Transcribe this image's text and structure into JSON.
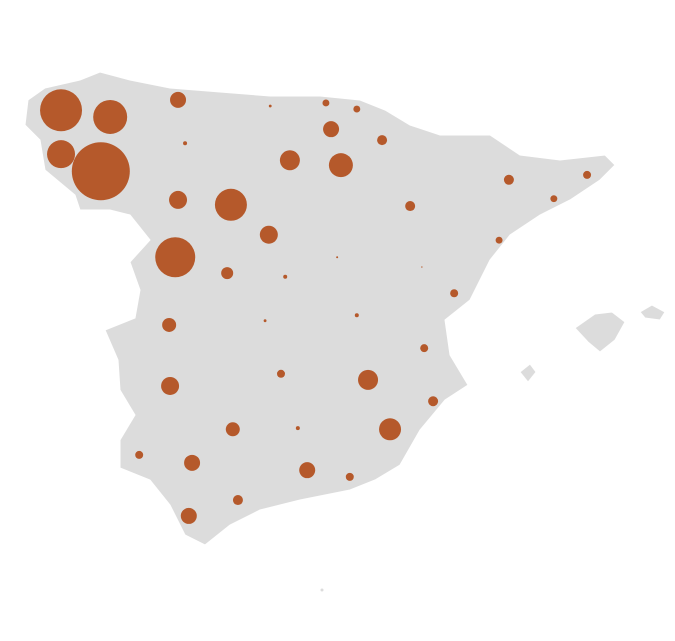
{
  "chart_data": {
    "type": "bubble_map",
    "color": "#b5592b",
    "lon": [
      -8.53,
      -7.48,
      -8.53,
      -7.68,
      -6.03,
      -4.06,
      -2.87,
      -2.21,
      -2.76,
      -1.67,
      -5.88,
      -3.64,
      -2.55,
      1.04,
      2.71,
      -6.03,
      -4.9,
      -1.07,
      2.0,
      -4.09,
      0.83,
      -6.09,
      -4.98,
      -3.74,
      -2.63,
      -0.82,
      -0.13,
      -6.22,
      -4.17,
      -2.21,
      -0.77,
      -3.83,
      -1.97,
      -6.2,
      -0.58,
      -4.86,
      -3.47,
      -1.5,
      -6.86,
      -5.73,
      -3.27,
      -2.36,
      -4.75,
      -5.8
    ],
    "lat": [
      43.14,
      43.03,
      42.42,
      42.14,
      43.31,
      43.21,
      43.26,
      43.16,
      42.83,
      42.65,
      42.6,
      42.32,
      42.24,
      42.0,
      42.08,
      41.67,
      41.59,
      41.57,
      41.69,
      41.1,
      41.01,
      40.73,
      40.47,
      40.41,
      40.73,
      40.57,
      40.14,
      39.62,
      39.69,
      39.78,
      39.24,
      38.82,
      38.72,
      38.62,
      38.37,
      37.91,
      37.93,
      37.91,
      37.49,
      37.36,
      37.24,
      37.13,
      36.75,
      36.49
    ],
    "values": [
      441,
      289,
      196,
      841,
      64,
      2,
      12,
      12,
      64,
      25,
      4,
      100,
      144,
      25,
      16,
      81,
      256,
      25,
      12,
      81,
      12,
      400,
      36,
      4,
      1,
      0.5,
      16,
      49,
      2,
      4,
      16,
      16,
      100,
      81,
      25,
      49,
      4,
      121,
      16,
      64,
      64,
      16,
      25,
      64
    ]
  }
}
